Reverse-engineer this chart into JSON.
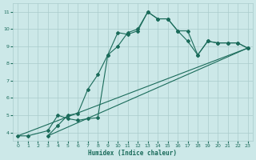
{
  "xlabel": "Humidex (Indice chaleur)",
  "xlim": [
    -0.5,
    23.5
  ],
  "ylim": [
    3.5,
    11.5
  ],
  "xticks": [
    0,
    1,
    2,
    3,
    4,
    5,
    6,
    7,
    8,
    9,
    10,
    11,
    12,
    13,
    14,
    15,
    16,
    17,
    18,
    19,
    20,
    21,
    22,
    23
  ],
  "yticks": [
    4,
    5,
    6,
    7,
    8,
    9,
    10,
    11
  ],
  "background_color": "#cce8e8",
  "grid_color": "#aacccc",
  "line_color": "#1a6b5a",
  "curve1_x": [
    0,
    1,
    3,
    4,
    5,
    6,
    7,
    8,
    9,
    10,
    11,
    12,
    13,
    14,
    15,
    16,
    17,
    18,
    19,
    20,
    21,
    22,
    23
  ],
  "curve1_y": [
    3.8,
    3.8,
    4.1,
    5.0,
    4.8,
    4.7,
    4.8,
    4.85,
    8.5,
    9.8,
    9.7,
    9.9,
    11.0,
    10.6,
    10.6,
    9.9,
    9.9,
    8.5,
    9.3,
    9.2,
    9.2,
    9.2,
    8.9
  ],
  "curve2_x": [
    3,
    4,
    5,
    6,
    7,
    8,
    9,
    10,
    11,
    12,
    13,
    14,
    15,
    16,
    17,
    18,
    19,
    20,
    21,
    22,
    23
  ],
  "curve2_y": [
    3.8,
    4.4,
    5.0,
    5.1,
    6.5,
    7.35,
    8.5,
    9.0,
    9.8,
    10.0,
    11.0,
    10.6,
    10.6,
    9.9,
    9.3,
    8.5,
    9.3,
    9.2,
    9.2,
    9.2,
    8.9
  ],
  "line3_x": [
    0,
    23
  ],
  "line3_y": [
    3.8,
    8.9
  ],
  "line4_x": [
    3,
    23
  ],
  "line4_y": [
    3.8,
    8.9
  ]
}
